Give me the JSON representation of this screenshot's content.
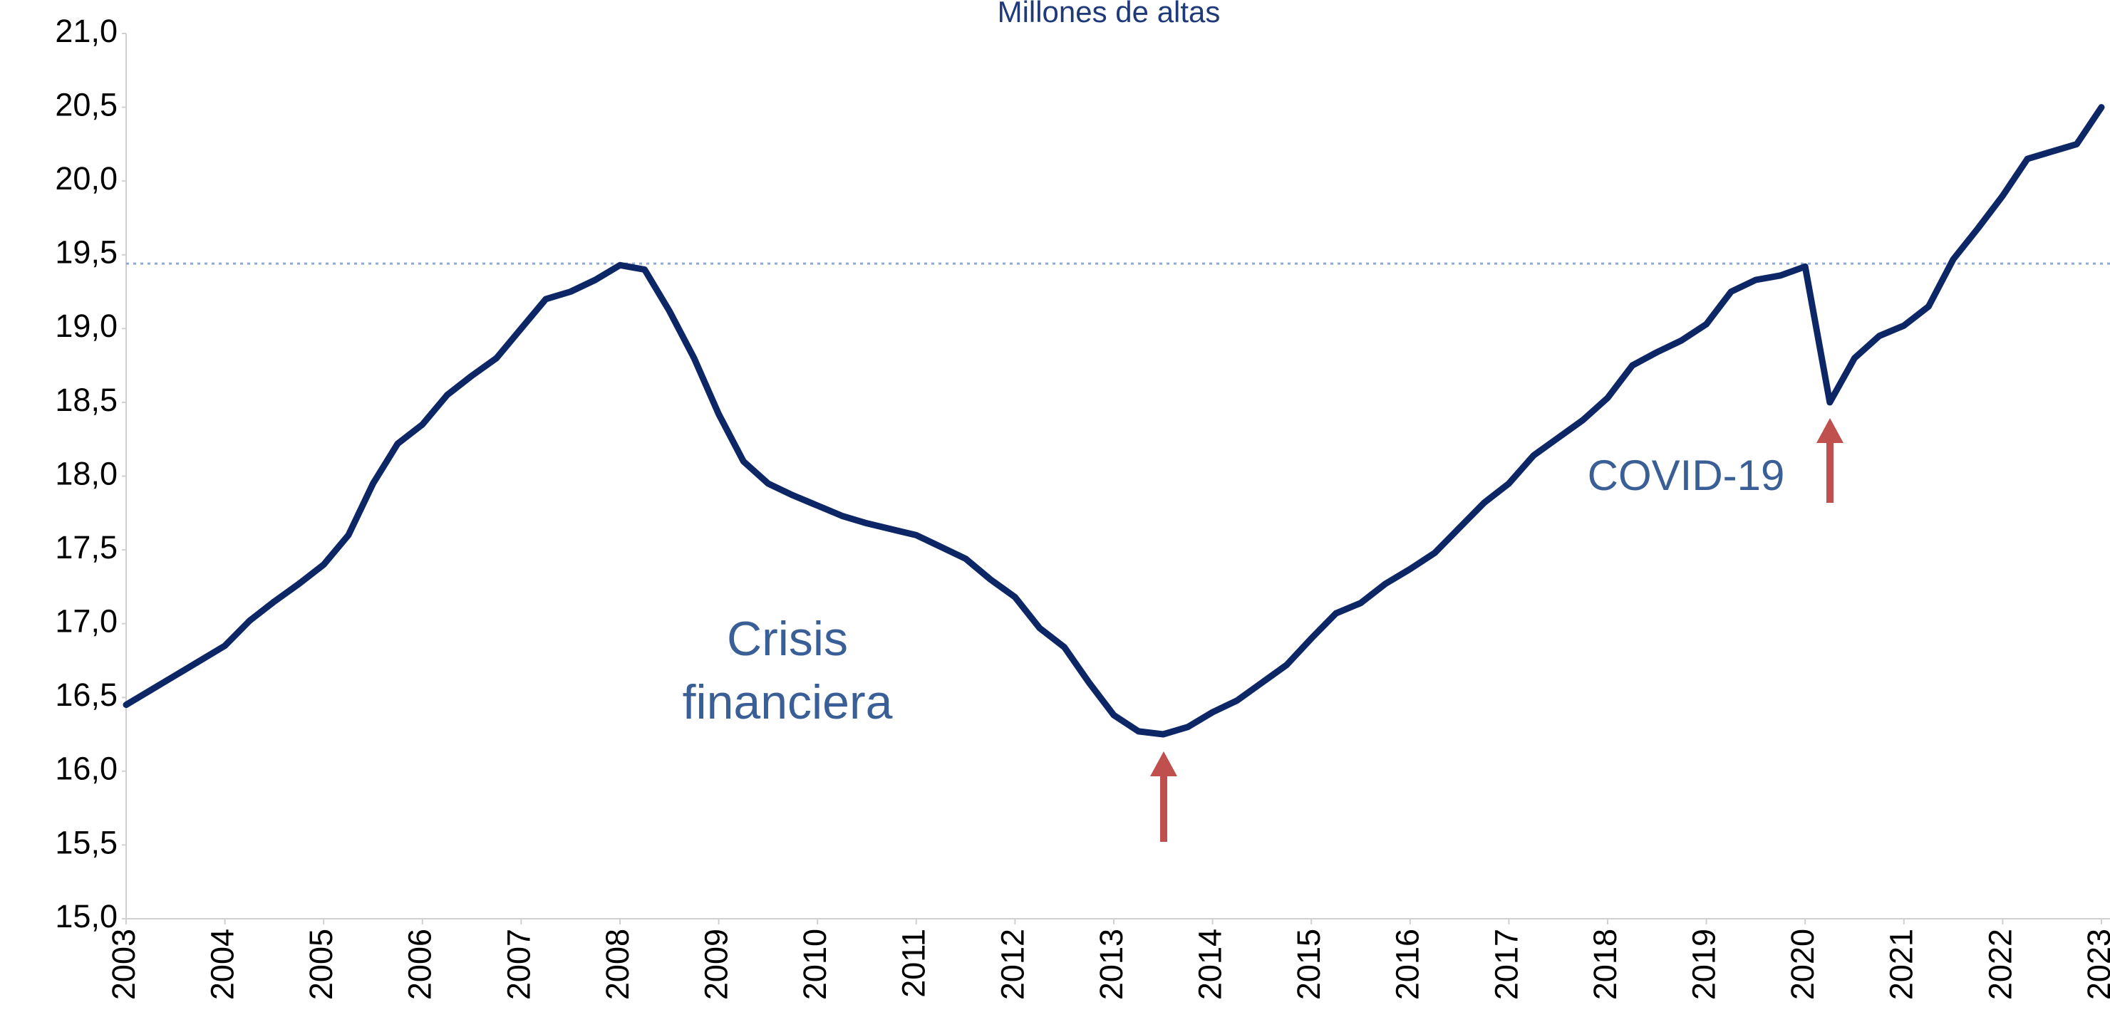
{
  "chart_data": {
    "type": "line",
    "title": "Millones de altas",
    "annotations": [
      "Crisis",
      "financiera",
      "COVID-19"
    ],
    "categories": [
      "2003",
      null,
      null,
      null,
      "2004",
      null,
      null,
      null,
      "2005",
      null,
      null,
      null,
      "2006",
      null,
      null,
      null,
      "2007",
      null,
      null,
      null,
      "2008",
      null,
      null,
      null,
      "2009",
      null,
      null,
      null,
      "2010",
      null,
      null,
      null,
      "2011",
      null,
      null,
      null,
      "2012",
      null,
      null,
      null,
      "2013",
      null,
      null,
      null,
      "2014",
      null,
      null,
      null,
      "2015",
      null,
      null,
      null,
      "2016",
      null,
      null,
      null,
      "2017",
      null,
      null,
      null,
      "2018",
      null,
      null,
      null,
      "2019",
      null,
      null,
      null,
      "2020",
      null,
      null,
      null,
      "2021",
      null,
      null,
      null,
      "2022",
      null,
      null,
      null,
      "2023"
    ],
    "series": [
      {
        "color": "#0d2766",
        "values": [
          16.45,
          16.55,
          16.65,
          16.75,
          16.85,
          17.02,
          17.15,
          17.27,
          17.4,
          17.6,
          17.95,
          18.22,
          18.35,
          18.55,
          18.68,
          18.8,
          19.0,
          19.2,
          19.25,
          19.33,
          19.43,
          19.4,
          19.12,
          18.8,
          18.42,
          18.1,
          17.95,
          17.87,
          17.8,
          17.73,
          17.68,
          17.64,
          17.6,
          17.52,
          17.44,
          17.3,
          17.18,
          16.97,
          16.84,
          16.6,
          16.38,
          16.27,
          16.25,
          16.3,
          16.4,
          16.48,
          16.6,
          16.72,
          16.9,
          17.07,
          17.14,
          17.27,
          17.37,
          17.48,
          17.65,
          17.82,
          17.95,
          18.14,
          18.26,
          18.38,
          18.53,
          18.75,
          18.84,
          18.92,
          19.03,
          19.25,
          19.33,
          19.36,
          19.42,
          18.5,
          18.8,
          18.95,
          19.02,
          19.15,
          19.47,
          19.68,
          19.9,
          20.15,
          20.2,
          20.25,
          20.5
        ]
      }
    ],
    "reference_line": {
      "value": 19.44,
      "color": "#8ea9db"
    },
    "ylim": [
      15,
      21
    ],
    "yticks": [
      {
        "value": 15,
        "label": "15,0"
      },
      {
        "value": 15.5,
        "label": "15,5"
      },
      {
        "value": 16,
        "label": "16,0"
      },
      {
        "value": 16.5,
        "label": "16,5"
      },
      {
        "value": 17,
        "label": "17,0"
      },
      {
        "value": 17.5,
        "label": "17,5"
      },
      {
        "value": 18,
        "label": "18,0"
      },
      {
        "value": 18.5,
        "label": "18,5"
      },
      {
        "value": 19,
        "label": "19,0"
      },
      {
        "value": 19.5,
        "label": "19,5"
      },
      {
        "value": 20,
        "label": "20,0"
      },
      {
        "value": 20.5,
        "label": "20,5"
      },
      {
        "value": 21,
        "label": "21,0"
      }
    ],
    "grid": false
  }
}
